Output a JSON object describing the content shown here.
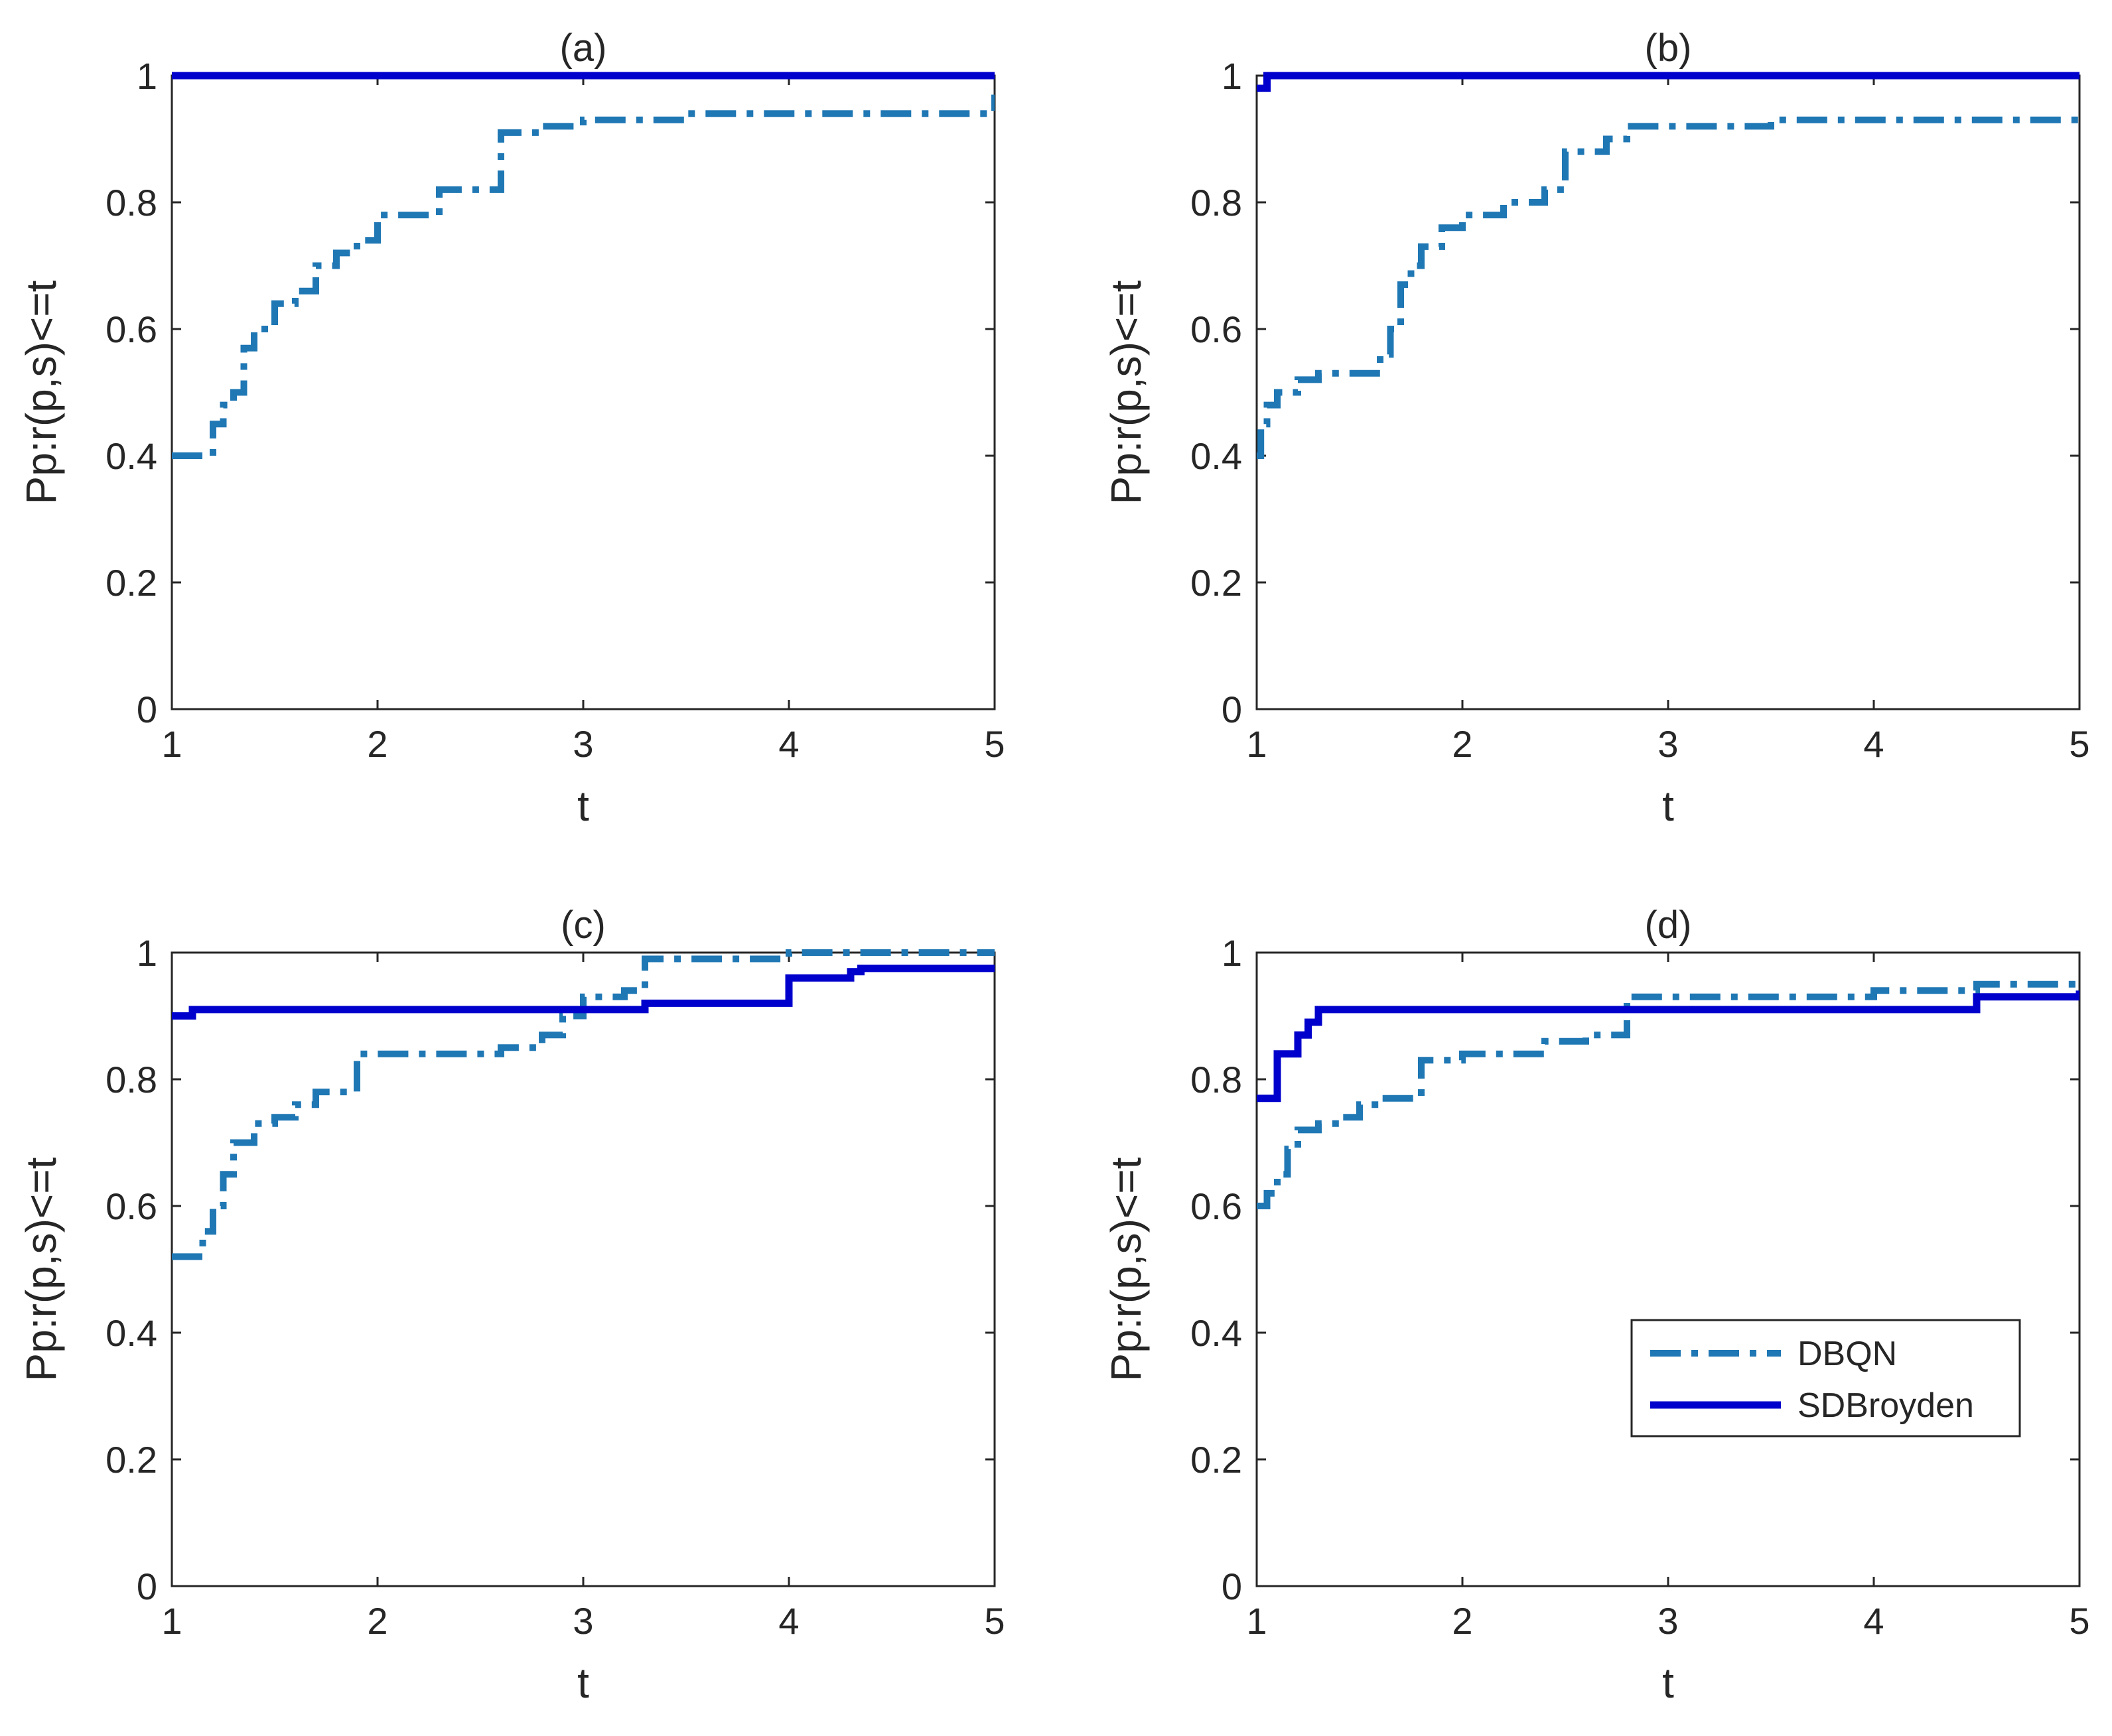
{
  "colors": {
    "dbqn": "#1f77b4",
    "sdbroyden": "#0000cc",
    "axis": "#262626"
  },
  "legend": {
    "placement": "inside-lower-right of panel (d)",
    "entries": [
      "DBQN",
      "SDBroyden"
    ]
  },
  "chart_data": [
    {
      "type": "line",
      "title": "(a)",
      "xlabel": "t",
      "ylabel": "Pp:r(p,s)<=t",
      "xlim": [
        1,
        5
      ],
      "ylim": [
        0,
        1
      ],
      "xticks": [
        "1",
        "2",
        "3",
        "4",
        "5"
      ],
      "yticks": [
        "0",
        "0.2",
        "0.4",
        "0.6",
        "0.8",
        "1"
      ],
      "grid": false,
      "series": [
        {
          "name": "DBQN",
          "style": "dash-dot",
          "x": [
            1.0,
            1.15,
            1.2,
            1.25,
            1.3,
            1.35,
            1.4,
            1.5,
            1.6,
            1.7,
            1.8,
            1.9,
            2.0,
            2.2,
            2.3,
            2.5,
            2.6,
            2.8,
            3.0,
            3.2,
            3.5,
            4.0,
            4.5,
            4.8,
            5.0
          ],
          "y": [
            0.4,
            0.4,
            0.45,
            0.48,
            0.5,
            0.57,
            0.6,
            0.64,
            0.66,
            0.7,
            0.72,
            0.74,
            0.78,
            0.78,
            0.82,
            0.82,
            0.91,
            0.92,
            0.93,
            0.93,
            0.94,
            0.94,
            0.94,
            0.94,
            0.97
          ]
        },
        {
          "name": "SDBroyden",
          "style": "solid",
          "x": [
            1.0,
            5.0
          ],
          "y": [
            1.0,
            1.0
          ]
        }
      ]
    },
    {
      "type": "line",
      "title": "(b)",
      "xlabel": "t",
      "ylabel": "Pp:r(p,s)<=t",
      "xlim": [
        1,
        5
      ],
      "ylim": [
        0,
        1
      ],
      "xticks": [
        "1",
        "2",
        "3",
        "4",
        "5"
      ],
      "yticks": [
        "0",
        "0.2",
        "0.4",
        "0.6",
        "0.8",
        "1"
      ],
      "grid": false,
      "series": [
        {
          "name": "DBQN",
          "style": "dash-dot",
          "x": [
            1.0,
            1.02,
            1.05,
            1.1,
            1.2,
            1.3,
            1.5,
            1.6,
            1.65,
            1.7,
            1.75,
            1.8,
            1.9,
            2.0,
            2.2,
            2.4,
            2.5,
            2.7,
            2.8,
            3.0,
            3.5,
            4.0,
            5.0
          ],
          "y": [
            0.4,
            0.45,
            0.48,
            0.5,
            0.52,
            0.53,
            0.53,
            0.56,
            0.6,
            0.67,
            0.7,
            0.73,
            0.76,
            0.78,
            0.8,
            0.82,
            0.88,
            0.9,
            0.92,
            0.92,
            0.93,
            0.93,
            0.93
          ]
        },
        {
          "name": "SDBroyden",
          "style": "solid",
          "x": [
            1.0,
            1.05,
            5.0
          ],
          "y": [
            0.98,
            1.0,
            1.0
          ]
        }
      ]
    },
    {
      "type": "line",
      "title": "(c)",
      "xlabel": "t",
      "ylabel": "Pp:r(p,s)<=t",
      "xlim": [
        1,
        5
      ],
      "ylim": [
        0,
        1
      ],
      "xticks": [
        "1",
        "2",
        "3",
        "4",
        "5"
      ],
      "yticks": [
        "0",
        "0.2",
        "0.4",
        "0.6",
        "0.8",
        "1"
      ],
      "grid": false,
      "series": [
        {
          "name": "DBQN",
          "style": "dash-dot",
          "x": [
            1.0,
            1.1,
            1.15,
            1.2,
            1.25,
            1.3,
            1.4,
            1.5,
            1.6,
            1.7,
            1.85,
            1.9,
            2.2,
            2.6,
            2.8,
            2.9,
            3.0,
            3.2,
            3.3,
            4.0,
            5.0
          ],
          "y": [
            0.52,
            0.52,
            0.56,
            0.6,
            0.65,
            0.7,
            0.73,
            0.74,
            0.76,
            0.78,
            0.78,
            0.84,
            0.84,
            0.85,
            0.87,
            0.9,
            0.93,
            0.94,
            0.99,
            1.0,
            1.0
          ]
        },
        {
          "name": "SDBroyden",
          "style": "solid",
          "x": [
            1.0,
            1.08,
            1.1,
            3.3,
            4.0,
            4.3,
            4.35,
            5.0
          ],
          "y": [
            0.9,
            0.9,
            0.91,
            0.92,
            0.96,
            0.97,
            0.975,
            0.975
          ]
        }
      ]
    },
    {
      "type": "line",
      "title": "(d)",
      "xlabel": "t",
      "ylabel": "Pp:r(p,s)<=t",
      "xlim": [
        1,
        5
      ],
      "ylim": [
        0,
        1
      ],
      "xticks": [
        "1",
        "2",
        "3",
        "4",
        "5"
      ],
      "yticks": [
        "0",
        "0.2",
        "0.4",
        "0.6",
        "0.8",
        "1"
      ],
      "grid": false,
      "series": [
        {
          "name": "DBQN",
          "style": "dash-dot",
          "x": [
            1.0,
            1.05,
            1.1,
            1.15,
            1.2,
            1.3,
            1.4,
            1.5,
            1.6,
            1.8,
            2.0,
            2.4,
            2.6,
            2.8,
            3.0,
            4.0,
            4.5,
            5.0
          ],
          "y": [
            0.6,
            0.62,
            0.65,
            0.69,
            0.72,
            0.73,
            0.74,
            0.76,
            0.77,
            0.83,
            0.84,
            0.86,
            0.87,
            0.93,
            0.93,
            0.94,
            0.95,
            0.96
          ]
        },
        {
          "name": "SDBroyden",
          "style": "solid",
          "x": [
            1.0,
            1.08,
            1.1,
            1.15,
            1.2,
            1.25,
            1.3,
            4.0,
            4.5,
            5.0
          ],
          "y": [
            0.77,
            0.77,
            0.84,
            0.84,
            0.87,
            0.89,
            0.91,
            0.91,
            0.93,
            0.94
          ]
        }
      ]
    }
  ]
}
